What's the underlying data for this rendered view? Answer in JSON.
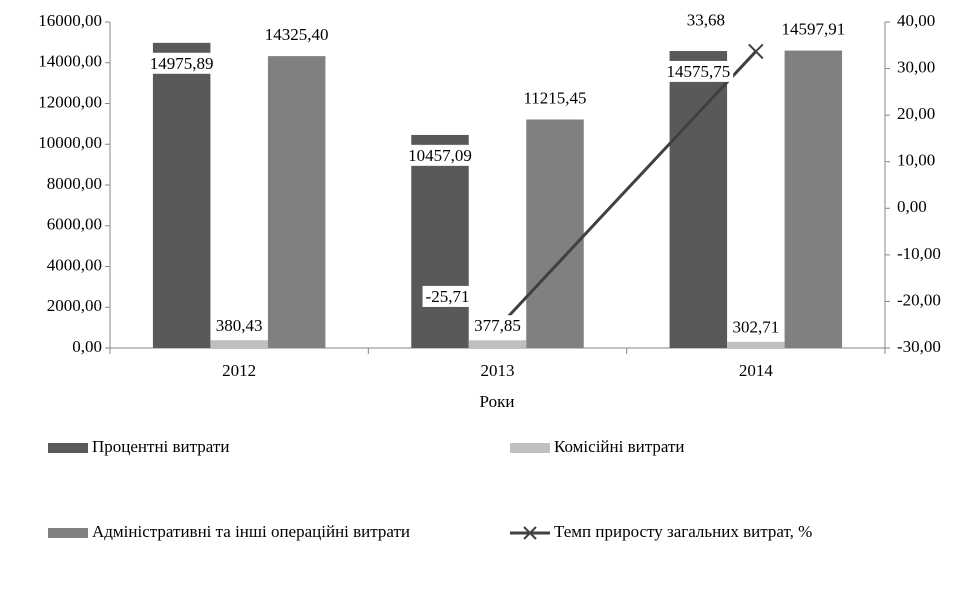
{
  "chart_data": {
    "type": "bar",
    "x_label": "Роки",
    "categories": [
      "2012",
      "2013",
      "2014"
    ],
    "series": [
      {
        "name": "Процентні витрати",
        "color": "#595959",
        "values": [
          14975.89,
          10457.09,
          14575.75
        ],
        "value_labels": [
          "14975,89",
          "10457,09",
          "14575,75"
        ]
      },
      {
        "name": "Комісійні витрати",
        "color": "#bfbfbf",
        "values": [
          380.43,
          377.85,
          302.71
        ],
        "value_labels": [
          "380,43",
          "377,85",
          "302,71"
        ]
      },
      {
        "name": "Адміністративні та інші операційні витрати",
        "color": "#808080",
        "values": [
          14325.4,
          11215.45,
          14597.91
        ],
        "value_labels": [
          "14325,40",
          "11215,45",
          "14597,91"
        ]
      },
      {
        "name": "Темп приросту загальних витрат, %",
        "color": "#404040",
        "type": "line",
        "axis": "y2",
        "values": [
          null,
          -25.71,
          33.68
        ],
        "value_labels": [
          null,
          "-25,71",
          "33,68"
        ]
      }
    ],
    "ylim": [
      0,
      16000
    ],
    "yticks": [
      {
        "value": 0,
        "label": "0,00"
      },
      {
        "value": 2000,
        "label": "2000,00"
      },
      {
        "value": 4000,
        "label": "4000,00"
      },
      {
        "value": 6000,
        "label": "6000,00"
      },
      {
        "value": 8000,
        "label": "8000,00"
      },
      {
        "value": 10000,
        "label": "10000,00"
      },
      {
        "value": 12000,
        "label": "12000,00"
      },
      {
        "value": 14000,
        "label": "14000,00"
      },
      {
        "value": 16000,
        "label": "16000,00"
      }
    ],
    "y2lim": [
      -30,
      40
    ],
    "y2ticks": [
      {
        "value": -30,
        "label": "-30,00"
      },
      {
        "value": -20,
        "label": "-20,00"
      },
      {
        "value": -10,
        "label": "-10,00"
      },
      {
        "value": 0,
        "label": "0,00"
      },
      {
        "value": 10,
        "label": "10,00"
      },
      {
        "value": 20,
        "label": "20,00"
      },
      {
        "value": 30,
        "label": "30,00"
      },
      {
        "value": 40,
        "label": "40,00"
      }
    ],
    "grid": false,
    "legend": "bottom"
  }
}
